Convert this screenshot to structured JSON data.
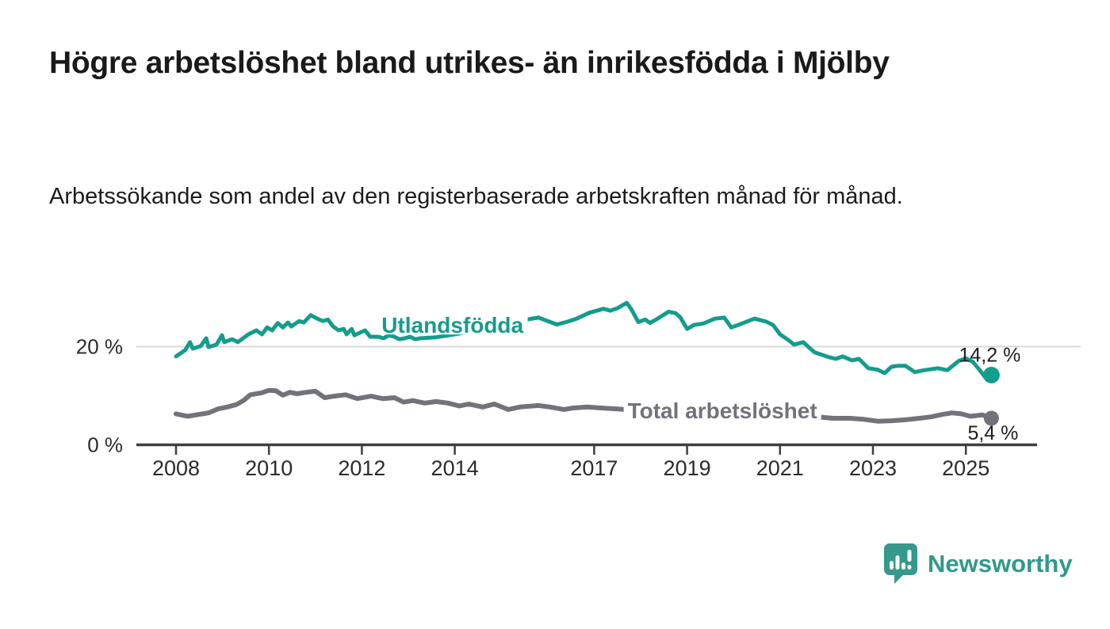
{
  "header": {
    "title": "Högre arbetslöshet bland utrikes- än inrikesfödda i Mjölby",
    "subtitle": "Arbetssökande som andel av den registerbaserade arbetskraften månad för månad."
  },
  "logo": {
    "text": "Newsworthy"
  },
  "colors": {
    "accent_teal": "#149c8c",
    "series_gray": "#75717b",
    "grid": "#d9d9d9",
    "axis": "#3f3f3f",
    "value_label": "#1d1d1d",
    "tick_label": "#2b2b2b",
    "logo_teal": "#35998c"
  },
  "chart_data": {
    "type": "line",
    "title": "Högre arbetslöshet bland utrikes- än inrikesfödda i Mjölby",
    "subtitle": "Arbetssökande som andel av den registerbaserade arbetskraften månad för månad.",
    "xlabel": "",
    "ylabel": "",
    "x_range": [
      2008,
      2025.58
    ],
    "ylim": [
      0,
      30
    ],
    "grid": "single horizontal gridline at 20 %",
    "legend_position": "inline labels on lines",
    "yticks": [
      {
        "value": 0,
        "label": "0 %"
      },
      {
        "value": 20,
        "label": "20 %"
      }
    ],
    "xticks": [
      {
        "value": 2008,
        "label": "2008"
      },
      {
        "value": 2010,
        "label": "2010"
      },
      {
        "value": 2012,
        "label": "2012"
      },
      {
        "value": 2014,
        "label": "2014"
      },
      {
        "value": 2017,
        "label": "2017"
      },
      {
        "value": 2019,
        "label": "2019"
      },
      {
        "value": 2021,
        "label": "2021"
      },
      {
        "value": 2023,
        "label": "2023"
      },
      {
        "value": 2025,
        "label": "2025"
      }
    ],
    "series": [
      {
        "name": "Utlandsfödda",
        "color": "#149c8c",
        "end_label": "14,2 %",
        "end_label_pos": "above",
        "label_at": [
          2013.95,
          24.4
        ],
        "points": [
          [
            2008.0,
            18.0
          ],
          [
            2008.2,
            19.3
          ],
          [
            2008.3,
            20.9
          ],
          [
            2008.36,
            19.6
          ],
          [
            2008.53,
            20.1
          ],
          [
            2008.65,
            21.7
          ],
          [
            2008.7,
            19.9
          ],
          [
            2008.87,
            20.4
          ],
          [
            2008.99,
            22.3
          ],
          [
            2009.04,
            20.9
          ],
          [
            2009.21,
            21.5
          ],
          [
            2009.33,
            20.9
          ],
          [
            2009.56,
            22.5
          ],
          [
            2009.73,
            23.3
          ],
          [
            2009.85,
            22.5
          ],
          [
            2009.96,
            23.9
          ],
          [
            2010.07,
            23.3
          ],
          [
            2010.19,
            24.8
          ],
          [
            2010.3,
            23.9
          ],
          [
            2010.41,
            24.9
          ],
          [
            2010.48,
            24.1
          ],
          [
            2010.65,
            25.2
          ],
          [
            2010.75,
            24.9
          ],
          [
            2010.9,
            26.4
          ],
          [
            2011.04,
            25.7
          ],
          [
            2011.16,
            25.2
          ],
          [
            2011.27,
            25.5
          ],
          [
            2011.38,
            24.1
          ],
          [
            2011.5,
            23.3
          ],
          [
            2011.61,
            23.6
          ],
          [
            2011.67,
            22.5
          ],
          [
            2011.78,
            23.6
          ],
          [
            2011.84,
            22.3
          ],
          [
            2011.95,
            22.8
          ],
          [
            2012.07,
            23.3
          ],
          [
            2012.18,
            22.0
          ],
          [
            2012.35,
            22.0
          ],
          [
            2012.47,
            21.7
          ],
          [
            2012.58,
            22.3
          ],
          [
            2012.7,
            22.0
          ],
          [
            2012.81,
            21.5
          ],
          [
            2012.92,
            21.7
          ],
          [
            2013.04,
            22.0
          ],
          [
            2013.15,
            21.5
          ],
          [
            2013.26,
            21.7
          ],
          [
            2013.6,
            21.9
          ],
          [
            2014.0,
            22.5
          ],
          [
            2014.4,
            23.2
          ],
          [
            2014.8,
            24.0
          ],
          [
            2015.2,
            24.8
          ],
          [
            2015.6,
            25.6
          ],
          [
            2015.8,
            25.9
          ],
          [
            2016.0,
            25.2
          ],
          [
            2016.2,
            24.5
          ],
          [
            2016.4,
            25.0
          ],
          [
            2016.6,
            25.6
          ],
          [
            2016.9,
            26.9
          ],
          [
            2017.2,
            27.7
          ],
          [
            2017.35,
            27.3
          ],
          [
            2017.5,
            27.8
          ],
          [
            2017.7,
            28.9
          ],
          [
            2017.8,
            27.6
          ],
          [
            2017.95,
            25.0
          ],
          [
            2018.1,
            25.5
          ],
          [
            2018.2,
            24.8
          ],
          [
            2018.35,
            25.6
          ],
          [
            2018.6,
            27.1
          ],
          [
            2018.75,
            26.8
          ],
          [
            2018.85,
            26.0
          ],
          [
            2019.0,
            23.6
          ],
          [
            2019.15,
            24.4
          ],
          [
            2019.35,
            24.7
          ],
          [
            2019.6,
            25.7
          ],
          [
            2019.8,
            25.9
          ],
          [
            2019.95,
            23.9
          ],
          [
            2020.1,
            24.4
          ],
          [
            2020.45,
            25.7
          ],
          [
            2020.7,
            25.1
          ],
          [
            2020.85,
            24.4
          ],
          [
            2021.0,
            22.5
          ],
          [
            2021.2,
            21.2
          ],
          [
            2021.3,
            20.4
          ],
          [
            2021.5,
            20.9
          ],
          [
            2021.65,
            19.6
          ],
          [
            2021.75,
            18.8
          ],
          [
            2022.0,
            18.0
          ],
          [
            2022.2,
            17.5
          ],
          [
            2022.35,
            18.0
          ],
          [
            2022.55,
            17.2
          ],
          [
            2022.7,
            17.5
          ],
          [
            2022.9,
            15.6
          ],
          [
            2023.1,
            15.3
          ],
          [
            2023.25,
            14.6
          ],
          [
            2023.4,
            15.9
          ],
          [
            2023.55,
            16.1
          ],
          [
            2023.7,
            16.1
          ],
          [
            2023.9,
            14.8
          ],
          [
            2024.1,
            15.2
          ],
          [
            2024.4,
            15.6
          ],
          [
            2024.6,
            15.2
          ],
          [
            2024.85,
            17.1
          ],
          [
            2025.0,
            17.6
          ],
          [
            2025.15,
            16.9
          ],
          [
            2025.3,
            15.2
          ],
          [
            2025.42,
            13.7
          ],
          [
            2025.55,
            14.2
          ]
        ]
      },
      {
        "name": "Total arbetslöshet",
        "color": "#75717b",
        "end_label": "5,4 %",
        "end_label_pos": "below",
        "label_at": [
          2019.76,
          7.0
        ],
        "points": [
          [
            2008.0,
            6.3
          ],
          [
            2008.25,
            5.8
          ],
          [
            2008.5,
            6.2
          ],
          [
            2008.7,
            6.5
          ],
          [
            2008.9,
            7.3
          ],
          [
            2009.1,
            7.7
          ],
          [
            2009.3,
            8.2
          ],
          [
            2009.45,
            9.0
          ],
          [
            2009.6,
            10.2
          ],
          [
            2009.85,
            10.6
          ],
          [
            2010.0,
            11.1
          ],
          [
            2010.15,
            11.0
          ],
          [
            2010.3,
            10.1
          ],
          [
            2010.45,
            10.7
          ],
          [
            2010.6,
            10.4
          ],
          [
            2010.8,
            10.7
          ],
          [
            2011.0,
            10.9
          ],
          [
            2011.2,
            9.6
          ],
          [
            2011.4,
            9.9
          ],
          [
            2011.65,
            10.2
          ],
          [
            2011.9,
            9.4
          ],
          [
            2012.2,
            9.9
          ],
          [
            2012.45,
            9.4
          ],
          [
            2012.7,
            9.6
          ],
          [
            2012.9,
            8.7
          ],
          [
            2013.1,
            9.0
          ],
          [
            2013.35,
            8.5
          ],
          [
            2013.6,
            8.8
          ],
          [
            2013.85,
            8.5
          ],
          [
            2014.1,
            7.9
          ],
          [
            2014.3,
            8.3
          ],
          [
            2014.6,
            7.7
          ],
          [
            2014.85,
            8.3
          ],
          [
            2015.15,
            7.2
          ],
          [
            2015.4,
            7.7
          ],
          [
            2015.8,
            8.0
          ],
          [
            2016.05,
            7.7
          ],
          [
            2016.35,
            7.2
          ],
          [
            2016.55,
            7.5
          ],
          [
            2016.85,
            7.7
          ],
          [
            2017.15,
            7.5
          ],
          [
            2017.5,
            7.3
          ],
          [
            2018.0,
            7.0
          ],
          [
            2018.5,
            6.9
          ],
          [
            2019.0,
            6.8
          ],
          [
            2019.5,
            6.9
          ],
          [
            2020.0,
            7.0
          ],
          [
            2020.4,
            7.3
          ],
          [
            2020.8,
            7.0
          ],
          [
            2021.2,
            6.5
          ],
          [
            2021.6,
            6.0
          ],
          [
            2021.9,
            5.6
          ],
          [
            2022.15,
            5.4
          ],
          [
            2022.5,
            5.4
          ],
          [
            2022.8,
            5.2
          ],
          [
            2023.1,
            4.8
          ],
          [
            2023.4,
            4.9
          ],
          [
            2023.7,
            5.1
          ],
          [
            2024.0,
            5.4
          ],
          [
            2024.25,
            5.7
          ],
          [
            2024.5,
            6.2
          ],
          [
            2024.7,
            6.5
          ],
          [
            2024.9,
            6.3
          ],
          [
            2025.1,
            5.8
          ],
          [
            2025.35,
            6.1
          ],
          [
            2025.55,
            5.4
          ]
        ]
      }
    ]
  }
}
